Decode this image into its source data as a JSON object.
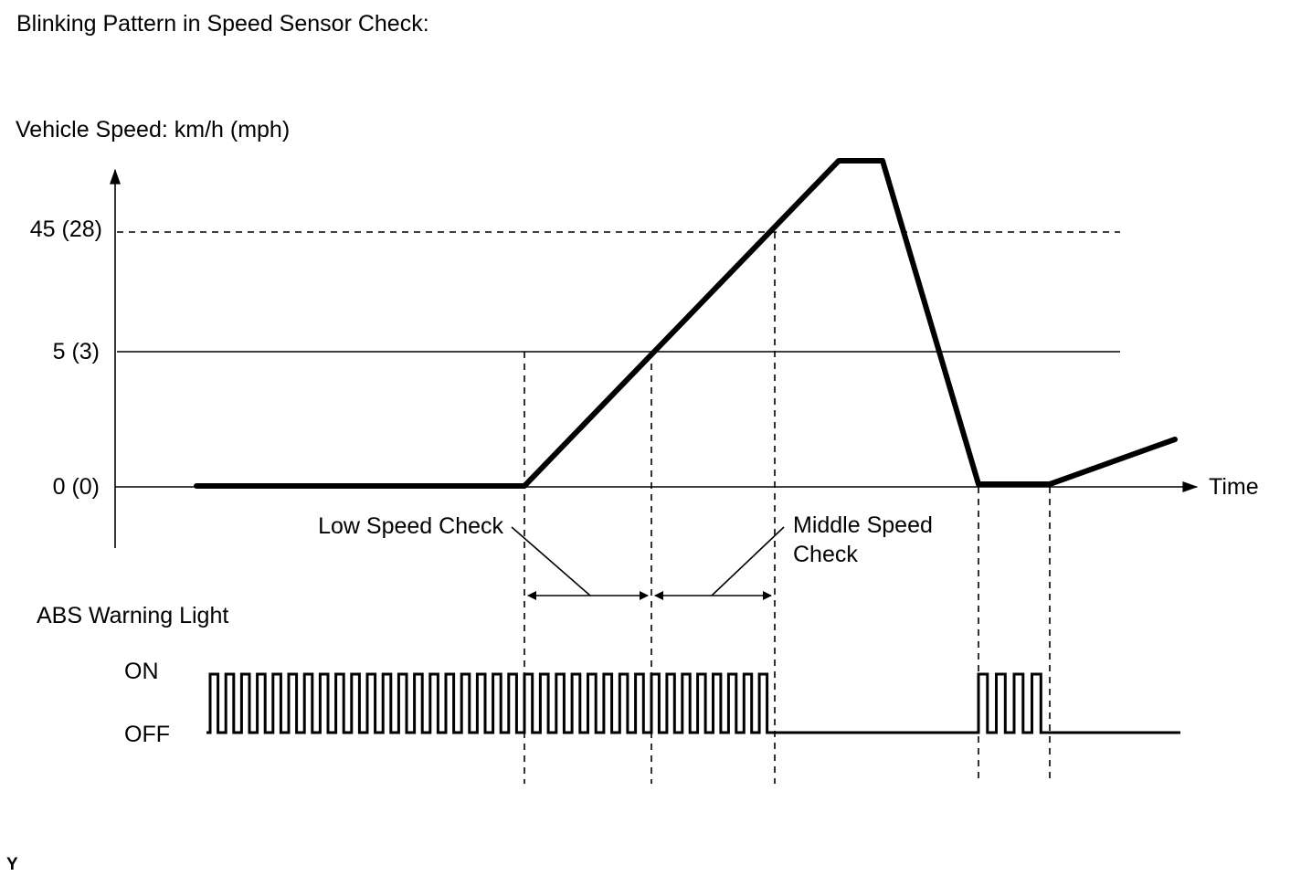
{
  "title": "Blinking Pattern in Speed Sensor Check:",
  "speed_axis_label": "Vehicle Speed: km/h (mph)",
  "speed_ticks": [
    "45 (28)",
    "5 (3)",
    "0 (0)"
  ],
  "time_label": "Time",
  "low_speed_label": "Low Speed Check",
  "middle_speed_label_line1": "Middle Speed",
  "middle_speed_label_line2": "Check",
  "abs_label": "ABS Warning Light",
  "on_label": "ON",
  "off_label": "OFF",
  "corner_mark": "Y",
  "pulse_groups": [
    {
      "segment": "before low speed check",
      "pulses": 20
    },
    {
      "segment": "low speed check",
      "pulses": 8
    },
    {
      "segment": "middle speed check",
      "pulses": 8
    },
    {
      "segment": "after stop",
      "pulses": 4
    }
  ]
}
